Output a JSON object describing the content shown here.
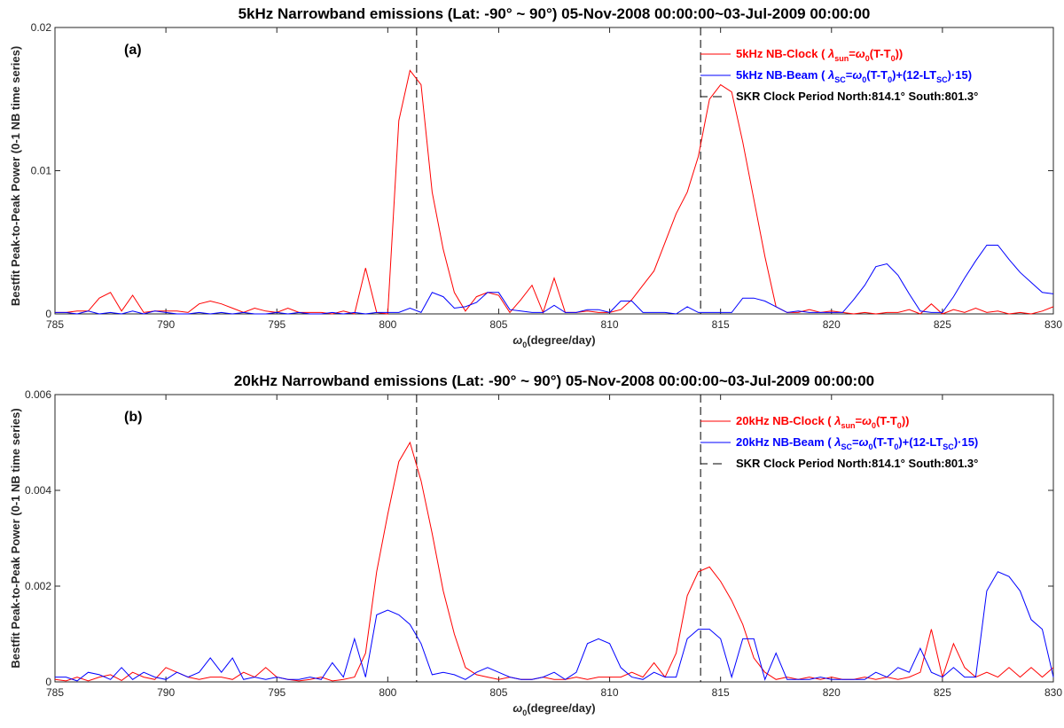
{
  "figure": {
    "ylabel": "Bestfit Peak-to-Peak Power (0-1 NB time series)"
  },
  "chart_data": [
    {
      "type": "line",
      "panel_label": "(a)",
      "title": "5kHz Narrowband emissions (Lat: -90° ~ 90°) 05-Nov-2008 00:00:00~03-Jul-2009 00:00:00",
      "xlabel": "ω0(degree/day)",
      "ylabel": "Bestfit Peak-to-Peak Power (0-1 NB time series)",
      "xlim": [
        785,
        830
      ],
      "ylim": [
        0,
        0.02
      ],
      "xticks": [
        785,
        790,
        795,
        800,
        805,
        810,
        815,
        820,
        825,
        830
      ],
      "yticks": [
        0,
        0.01,
        0.02
      ],
      "ytick_labels": [
        "0",
        "0.01",
        "0.02"
      ],
      "legend_position": "top-right",
      "legend": [
        {
          "text": "5kHz NB-Clock ( λsun=ω0(T-T0))",
          "color": "#ff0000",
          "style": "solid"
        },
        {
          "text": "5kHz NB-Beam ( λSC=ω0(T-T0)+(12-LTSC)·15)",
          "color": "#0000ff",
          "style": "solid"
        },
        {
          "text": "SKR Clock Period North:814.1° South:801.3°",
          "color": "#000000",
          "style": "dashed"
        }
      ],
      "vlines": [
        801.3,
        814.1
      ],
      "series": [
        {
          "name": "5kHz NB-Clock",
          "color": "#ff0000",
          "x": [
            785,
            785.5,
            786,
            786.5,
            787,
            787.5,
            788,
            788.5,
            789,
            789.5,
            790,
            790.5,
            791,
            791.5,
            792,
            792.5,
            793,
            793.5,
            794,
            794.5,
            795,
            795.5,
            796,
            796.5,
            797,
            797.5,
            798,
            798.5,
            799,
            799.5,
            800,
            800.5,
            801,
            801.5,
            802,
            802.5,
            803,
            803.5,
            804,
            804.5,
            805,
            805.5,
            806,
            806.5,
            807,
            807.5,
            808,
            808.5,
            809,
            809.5,
            810,
            810.5,
            811,
            811.5,
            812,
            812.5,
            813,
            813.5,
            814,
            814.5,
            815,
            815.5,
            816,
            816.5,
            817,
            817.5,
            818,
            818.5,
            819,
            819.5,
            820,
            820.5,
            821,
            821.5,
            822,
            822.5,
            823,
            823.5,
            824,
            824.5,
            825,
            825.5,
            826,
            826.5,
            827,
            827.5,
            828,
            828.5,
            829,
            829.5,
            830
          ],
          "values": [
            0.0001,
            0.0001,
            0.0002,
            0.0002,
            0.0011,
            0.0015,
            0.0002,
            0.0013,
            0.0001,
            0.0002,
            0.0002,
            0.0002,
            0.0001,
            0.0007,
            0.0009,
            0.0007,
            0.0004,
            0.0001,
            0.0004,
            0.0002,
            0.0001,
            0.0004,
            0.0001,
            0.0001,
            0.0001,
            0,
            0.0002,
            0,
            0.0032,
            0.0001,
            0,
            0.0135,
            0.017,
            0.016,
            0.0085,
            0.0045,
            0.0015,
            0.0002,
            0.0012,
            0.0015,
            0.0013,
            0.0001,
            0.001,
            0.002,
            0.0001,
            0.0025,
            0.0001,
            0.0001,
            0.0002,
            0.0001,
            0.0001,
            0.0003,
            0.001,
            0.002,
            0.003,
            0.005,
            0.007,
            0.0085,
            0.011,
            0.015,
            0.016,
            0.0155,
            0.012,
            0.008,
            0.004,
            0.0005,
            0.0001,
            0.0001,
            0.0003,
            0.0001,
            0.0002,
            0.0001,
            0,
            0.0001,
            0,
            0.0001,
            0.0001,
            0.0003,
            0,
            0.0007,
            0,
            0.0003,
            0.0001,
            0.0004,
            0.0001,
            0.0002,
            0,
            0.0001,
            0,
            0.0002,
            0.0005
          ]
        },
        {
          "name": "5kHz NB-Beam",
          "color": "#0000ff",
          "x": [
            785,
            785.5,
            786,
            786.5,
            787,
            787.5,
            788,
            788.5,
            789,
            789.5,
            790,
            790.5,
            791,
            791.5,
            792,
            792.5,
            793,
            793.5,
            794,
            794.5,
            795,
            795.5,
            796,
            796.5,
            797,
            797.5,
            798,
            798.5,
            799,
            799.5,
            800,
            800.5,
            801,
            801.5,
            802,
            802.5,
            803,
            803.5,
            804,
            804.5,
            805,
            805.5,
            806,
            806.5,
            807,
            807.5,
            808,
            808.5,
            809,
            809.5,
            810,
            810.5,
            811,
            811.5,
            812,
            812.5,
            813,
            813.5,
            814,
            814.5,
            815,
            815.5,
            816,
            816.5,
            817,
            817.5,
            818,
            818.5,
            819,
            819.5,
            820,
            820.5,
            821,
            821.5,
            822,
            822.5,
            823,
            823.5,
            824,
            824.5,
            825,
            825.5,
            826,
            826.5,
            827,
            827.5,
            828,
            828.5,
            829,
            829.5,
            830
          ],
          "values": [
            0.0001,
            0.0001,
            0,
            0.0002,
            0,
            0.0001,
            0,
            0.0002,
            0,
            0.0002,
            0.0001,
            0,
            0,
            0.0001,
            0,
            0.0001,
            0,
            0.0001,
            0,
            0,
            0.0001,
            0,
            0.0001,
            0,
            0,
            0.0001,
            0,
            0.0001,
            0,
            0.0001,
            0.0001,
            0.0001,
            0.0004,
            0.0001,
            0.0015,
            0.0012,
            0.0004,
            0.0005,
            0.0008,
            0.0015,
            0.0015,
            0.0003,
            0.0002,
            0.0001,
            0.0001,
            0.0006,
            0.0001,
            0.0001,
            0.0003,
            0.0003,
            0.0001,
            0.0009,
            0.0009,
            0.0001,
            0.0001,
            0.0001,
            0,
            0.0005,
            0.0001,
            0.0001,
            0.0001,
            0.0001,
            0.0011,
            0.0011,
            0.0009,
            0.0005,
            0.0001,
            0.0002,
            0.0001,
            0.0001,
            0.0001,
            0.0001,
            0.001,
            0.002,
            0.0033,
            0.0035,
            0.0027,
            0.0014,
            0.0002,
            0.0001,
            0.0001,
            0.0012,
            0.0025,
            0.0037,
            0.0048,
            0.0048,
            0.0038,
            0.0029,
            0.0022,
            0.0015,
            0.0014
          ]
        }
      ]
    },
    {
      "type": "line",
      "panel_label": "(b)",
      "title": "20kHz Narrowband emissions (Lat: -90° ~ 90°) 05-Nov-2008 00:00:00~03-Jul-2009 00:00:00",
      "xlabel": "ω0(degree/day)",
      "ylabel": "Bestfit Peak-to-Peak Power (0-1 NB time series)",
      "xlim": [
        785,
        830
      ],
      "ylim": [
        0,
        0.006
      ],
      "xticks": [
        785,
        790,
        795,
        800,
        805,
        810,
        815,
        820,
        825,
        830
      ],
      "yticks": [
        0,
        0.002,
        0.004,
        0.006
      ],
      "ytick_labels": [
        "0",
        "0.002",
        "0.004",
        "0.006"
      ],
      "legend_position": "top-right",
      "legend": [
        {
          "text": "20kHz NB-Clock ( λsun=ω0(T-T0))",
          "color": "#ff0000",
          "style": "solid"
        },
        {
          "text": "20kHz NB-Beam ( λSC=ω0(T-T0)+(12-LTSC)·15)",
          "color": "#0000ff",
          "style": "solid"
        },
        {
          "text": "SKR Clock Period North:814.1° South:801.3°",
          "color": "#000000",
          "style": "dashed"
        }
      ],
      "vlines": [
        801.3,
        814.1
      ],
      "series": [
        {
          "name": "20kHz NB-Clock",
          "color": "#ff0000",
          "x": [
            785,
            785.5,
            786,
            786.5,
            787,
            787.5,
            788,
            788.5,
            789,
            789.5,
            790,
            790.5,
            791,
            791.5,
            792,
            792.5,
            793,
            793.5,
            794,
            794.5,
            795,
            795.5,
            796,
            796.5,
            797,
            797.5,
            798,
            798.5,
            799,
            799.5,
            800,
            800.5,
            801,
            801.5,
            802,
            802.5,
            803,
            803.5,
            804,
            804.5,
            805,
            805.5,
            806,
            806.5,
            807,
            807.5,
            808,
            808.5,
            809,
            809.5,
            810,
            810.5,
            811,
            811.5,
            812,
            812.5,
            813,
            813.5,
            814,
            814.5,
            815,
            815.5,
            816,
            816.5,
            817,
            817.5,
            818,
            818.5,
            819,
            819.5,
            820,
            820.5,
            821,
            821.5,
            822,
            822.5,
            823,
            823.5,
            824,
            824.5,
            825,
            825.5,
            826,
            826.5,
            827,
            827.5,
            828,
            828.5,
            829,
            829.5,
            830
          ],
          "values": [
            5e-05,
            2e-05,
            0.0001,
            2e-05,
            0.0001,
            0.00015,
            3e-05,
            0.0002,
            0.0001,
            5e-05,
            0.0003,
            0.0002,
            0.0001,
            5e-05,
            0.0001,
            0.0001,
            5e-05,
            0.0002,
            0.0001,
            0.0003,
            0.0001,
            5e-05,
            2e-05,
            5e-05,
            0.0001,
            2e-05,
            5e-05,
            0.0001,
            0.0006,
            0.0023,
            0.0035,
            0.0046,
            0.005,
            0.0042,
            0.0031,
            0.0019,
            0.001,
            0.0003,
            0.00015,
            0.0001,
            5e-05,
            0.0001,
            5e-05,
            5e-05,
            0.0001,
            5e-05,
            5e-05,
            0.0001,
            5e-05,
            0.0001,
            0.0001,
            0.0001,
            0.0002,
            0.0001,
            0.0004,
            0.0001,
            0.0006,
            0.0018,
            0.0023,
            0.0024,
            0.0021,
            0.0017,
            0.0012,
            0.0005,
            0.0002,
            5e-05,
            0.0001,
            5e-05,
            0.0001,
            5e-05,
            0.0001,
            5e-05,
            5e-05,
            0.0001,
            5e-05,
            0.0001,
            5e-05,
            0.0001,
            0.0002,
            0.0011,
            0.0001,
            0.0008,
            0.0003,
            0.0001,
            0.0002,
            0.0001,
            0.0003,
            0.0001,
            0.0003,
            0.0001,
            0.0003
          ]
        },
        {
          "name": "20kHz NB-Beam",
          "color": "#0000ff",
          "x": [
            785,
            785.5,
            786,
            786.5,
            787,
            787.5,
            788,
            788.5,
            789,
            789.5,
            790,
            790.5,
            791,
            791.5,
            792,
            792.5,
            793,
            793.5,
            794,
            794.5,
            795,
            795.5,
            796,
            796.5,
            797,
            797.5,
            798,
            798.5,
            799,
            799.5,
            800,
            800.5,
            801,
            801.5,
            802,
            802.5,
            803,
            803.5,
            804,
            804.5,
            805,
            805.5,
            806,
            806.5,
            807,
            807.5,
            808,
            808.5,
            809,
            809.5,
            810,
            810.5,
            811,
            811.5,
            812,
            812.5,
            813,
            813.5,
            814,
            814.5,
            815,
            815.5,
            816,
            816.5,
            817,
            817.5,
            818,
            818.5,
            819,
            819.5,
            820,
            820.5,
            821,
            821.5,
            822,
            822.5,
            823,
            823.5,
            824,
            824.5,
            825,
            825.5,
            826,
            826.5,
            827,
            827.5,
            828,
            828.5,
            829,
            829.5,
            830
          ],
          "values": [
            0.0001,
            0.0001,
            2e-05,
            0.0002,
            0.00015,
            5e-05,
            0.0003,
            5e-05,
            0.0002,
            0.0001,
            5e-05,
            0.0002,
            0.0001,
            0.0002,
            0.0005,
            0.0002,
            0.0005,
            5e-05,
            0.0001,
            5e-05,
            0.0001,
            5e-05,
            5e-05,
            0.0001,
            5e-05,
            0.0004,
            0.0001,
            0.0009,
            0.0001,
            0.0014,
            0.0015,
            0.0014,
            0.0012,
            0.0008,
            0.00015,
            0.0002,
            0.00015,
            5e-05,
            0.0002,
            0.0003,
            0.0002,
            0.0001,
            5e-05,
            5e-05,
            0.0001,
            0.0002,
            5e-05,
            0.0002,
            0.0008,
            0.0009,
            0.0008,
            0.0003,
            0.0001,
            5e-05,
            0.0002,
            0.0001,
            0.0001,
            0.0009,
            0.0011,
            0.0011,
            0.0009,
            0.0001,
            0.0009,
            0.0009,
            5e-05,
            0.0006,
            5e-05,
            5e-05,
            5e-05,
            0.0001,
            5e-05,
            5e-05,
            5e-05,
            5e-05,
            0.0002,
            0.0001,
            0.0003,
            0.0002,
            0.0007,
            0.0002,
            0.0001,
            0.0003,
            0.0001,
            0.0001,
            0.0019,
            0.0023,
            0.0022,
            0.0019,
            0.0013,
            0.0011,
            0.0001
          ]
        }
      ]
    }
  ]
}
